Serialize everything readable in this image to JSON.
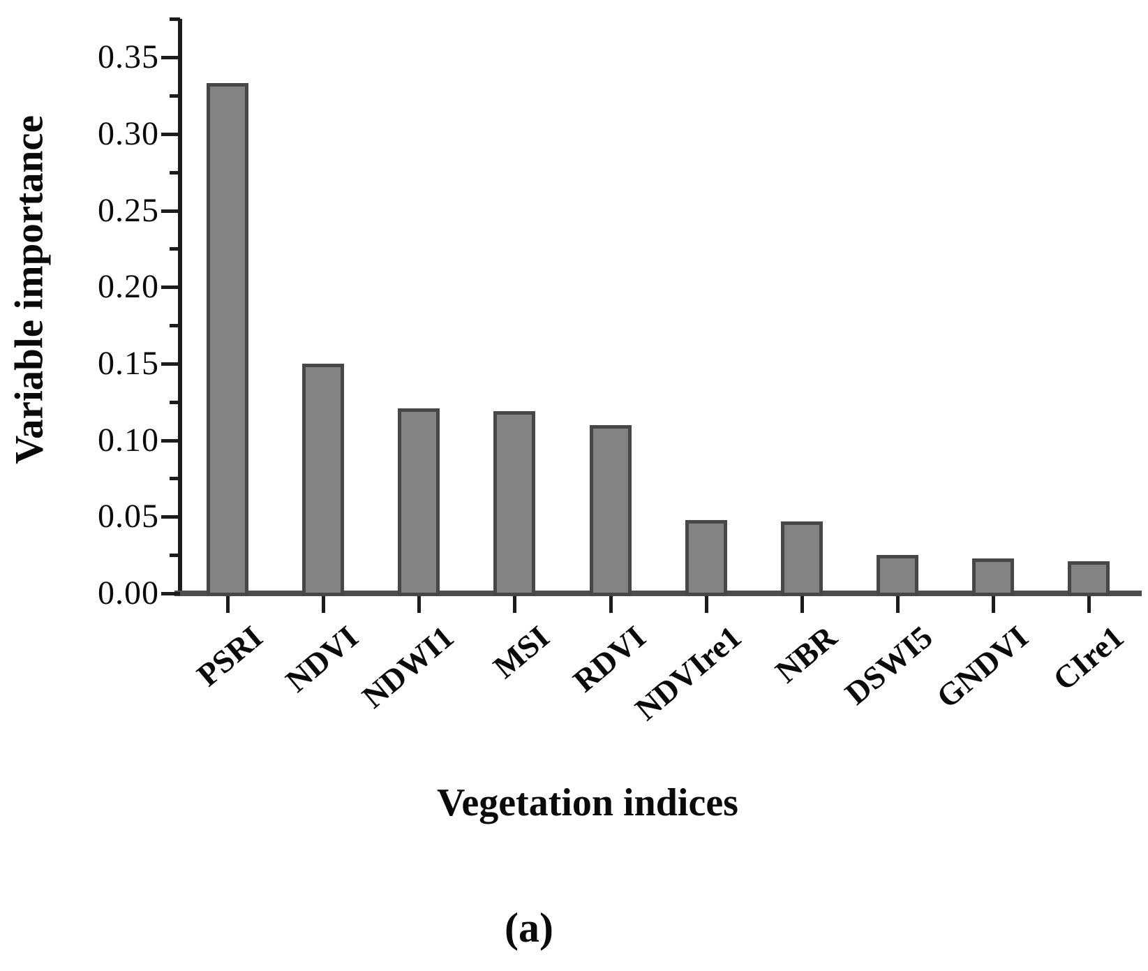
{
  "figure": {
    "caption": "(a)"
  },
  "chart_data": {
    "type": "bar",
    "title": "",
    "xlabel": "Vegetation indices",
    "ylabel": "Variable importance",
    "categories": [
      "PSRI",
      "NDVI",
      "NDWI1",
      "MSI",
      "RDVI",
      "NDVIre1",
      "NBR",
      "DSWI5",
      "GNDVI",
      "CIre1"
    ],
    "values": [
      0.333,
      0.15,
      0.121,
      0.119,
      0.11,
      0.048,
      0.047,
      0.025,
      0.023,
      0.021
    ],
    "ylim": [
      0,
      0.375
    ],
    "ytick_labels": [
      "0.00",
      "0.05",
      "0.10",
      "0.15",
      "0.20",
      "0.25",
      "0.30",
      "0.35"
    ],
    "minor_tick_step": 0.025,
    "grid": "off",
    "legend": "none",
    "bar_fill_color": "#838383",
    "bar_border_color": "#474747",
    "axis_color": "#1c1c1c",
    "text_color": "#0a0a0a"
  }
}
